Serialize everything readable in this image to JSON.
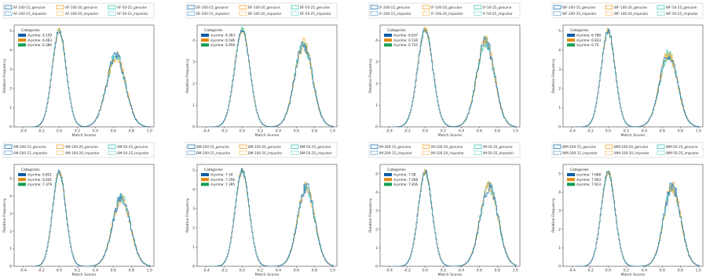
{
  "chart_data": [
    {
      "type": "histogram",
      "xlabel": "Match Scores",
      "ylabel": "Relative Frequency",
      "xlim": [
        -0.5,
        1.05
      ],
      "ylim": [
        0,
        5.3
      ],
      "xticks": [
        -0.4,
        -0.2,
        0.0,
        0.2,
        0.4,
        0.6,
        0.8,
        1.0
      ],
      "yticks": [
        0,
        1,
        2,
        3,
        4,
        5
      ],
      "legend_top": [
        "AF-200-15_genuine",
        "AF-100-20_genuine",
        "AF-50-25_genuine",
        "AF-200-15_impostor",
        "AF-100-20_impostor",
        "AF-50-25_impostor"
      ],
      "categories_title": "Categories",
      "categories": [
        "d-prime: 6.159",
        "d-prime: 6.463",
        "d-prime: 6.386"
      ],
      "impostor": {
        "mean": 0.0,
        "sd": 0.078,
        "peak": 5.0
      },
      "genuine": {
        "mean": 0.63,
        "sd": 0.105,
        "peak": 3.7
      }
    },
    {
      "type": "histogram",
      "xlabel": "Match Scores",
      "ylabel": "Relative Frequency",
      "xlim": [
        -0.5,
        1.05
      ],
      "ylim": [
        0,
        4.7
      ],
      "xticks": [
        -0.4,
        -0.2,
        0.0,
        0.2,
        0.4,
        0.6,
        0.8,
        1.0
      ],
      "yticks": [
        0,
        1,
        2,
        3,
        4
      ],
      "legend_top": [
        "BF-200-15_genuine",
        "BF-100-20_genuine",
        "BF-50-25_genuine",
        "BF-200-15_impostor",
        "BF-100-20_impostor",
        "BF-50-25_impostor"
      ],
      "categories_title": "Categories",
      "categories": [
        "d-prime: 6.363",
        "d-prime: 6.546",
        "d-prime: 6.959"
      ],
      "impostor": {
        "mean": 0.0,
        "sd": 0.085,
        "peak": 4.5
      },
      "genuine": {
        "mean": 0.68,
        "sd": 0.1,
        "peak": 3.8
      }
    },
    {
      "type": "histogram",
      "xlabel": "Match Scores",
      "ylabel": "Relative Frequency",
      "xlim": [
        -0.5,
        1.05
      ],
      "ylim": [
        0,
        4.7
      ],
      "xticks": [
        -0.4,
        -0.2,
        0.0,
        0.2,
        0.4,
        0.6,
        0.8,
        1.0
      ],
      "yticks": [
        0,
        1,
        2,
        3,
        4
      ],
      "legend_top": [
        "IF-200-15_genuine",
        "IF-100-20_genuine",
        "IF-50-25_genuine",
        "IF-200-15_impostor",
        "IF-100-20_impostor",
        "IF-50-25_impostor"
      ],
      "categories_title": "Categories",
      "categories": [
        "d-prime: 6.637",
        "d-prime: 6.516",
        "d-prime: 6.725"
      ],
      "impostor": {
        "mean": 0.0,
        "sd": 0.085,
        "peak": 4.5
      },
      "genuine": {
        "mean": 0.67,
        "sd": 0.1,
        "peak": 3.9
      }
    },
    {
      "type": "histogram",
      "xlabel": "Match Scores",
      "ylabel": "Relative Frequency",
      "xlim": [
        -0.5,
        1.05
      ],
      "ylim": [
        0,
        5.3
      ],
      "xticks": [
        -0.4,
        -0.2,
        0.0,
        0.2,
        0.4,
        0.6,
        0.8,
        1.0
      ],
      "yticks": [
        0,
        1,
        2,
        3,
        4,
        5
      ],
      "legend_top": [
        "WF-200-15_genuine",
        "WF-100-20_genuine",
        "WF-50-25_genuine",
        "WF-200-15_impostor",
        "WF-100-20_impostor",
        "WF-50-25_impostor"
      ],
      "categories_title": "Categories",
      "categories": [
        "d-prime: 6.788",
        "d-prime: 6.823",
        "d-prime: 6.75"
      ],
      "impostor": {
        "mean": 0.0,
        "sd": 0.078,
        "peak": 5.0
      },
      "genuine": {
        "mean": 0.67,
        "sd": 0.1,
        "peak": 3.8
      }
    },
    {
      "type": "histogram",
      "xlabel": "Match Scores",
      "ylabel": "Relative Frequency",
      "xlim": [
        -0.5,
        1.05
      ],
      "ylim": [
        0,
        5.8
      ],
      "xticks": [
        -0.4,
        -0.2,
        0.0,
        0.2,
        0.4,
        0.6,
        0.8,
        1.0
      ],
      "yticks": [
        0,
        1,
        2,
        3,
        4,
        5
      ],
      "legend_top": [
        "AM-200-15_genuine",
        "AM-100-20_genuine",
        "AM-50-25_genuine",
        "AM-200-15_impostor",
        "AM-100-20_impostor",
        "AM-50-25_impostor"
      ],
      "categories_title": "Categories",
      "categories": [
        "d-prime: 6.821",
        "d-prime: 6.641",
        "d-prime: 7.379"
      ],
      "impostor": {
        "mean": 0.0,
        "sd": 0.073,
        "peak": 5.4
      },
      "genuine": {
        "mean": 0.69,
        "sd": 0.1,
        "peak": 3.9
      }
    },
    {
      "type": "histogram",
      "xlabel": "Match Scores",
      "ylabel": "Relative Frequency",
      "xlim": [
        -0.5,
        1.05
      ],
      "ylim": [
        0,
        5.3
      ],
      "xticks": [
        -0.4,
        -0.2,
        0.0,
        0.2,
        0.4,
        0.6,
        0.8,
        1.0
      ],
      "yticks": [
        0,
        1,
        2,
        3,
        4,
        5
      ],
      "legend_top": [
        "BM-200-15_genuine",
        "BM-100-20_genuine",
        "BM-50-25_genuine",
        "BM-200-15_impostor",
        "BM-100-20_impostor",
        "BM-50-25_impostor"
      ],
      "categories_title": "Categories",
      "categories": [
        "d-prime: 7.34",
        "d-prime: 7.356",
        "d-prime: 7.395"
      ],
      "impostor": {
        "mean": 0.0,
        "sd": 0.078,
        "peak": 5.0
      },
      "genuine": {
        "mean": 0.71,
        "sd": 0.095,
        "peak": 4.1
      }
    },
    {
      "type": "histogram",
      "xlabel": "Match Scores",
      "ylabel": "Relative Frequency",
      "xlim": [
        -0.5,
        1.05
      ],
      "ylim": [
        0,
        5.5
      ],
      "xticks": [
        -0.4,
        -0.2,
        0.0,
        0.2,
        0.4,
        0.6,
        0.8,
        1.0
      ],
      "yticks": [
        0,
        1,
        2,
        3,
        4,
        5
      ],
      "legend_top": [
        "IM-200-15_genuine",
        "IM-100-20_genuine",
        "IM-50-25_genuine",
        "IM-200-15_impostor",
        "IM-100-20_impostor",
        "IM-50-25_impostor"
      ],
      "categories_title": "Categories",
      "categories": [
        "d-prime: 7.58",
        "d-prime: 7.468",
        "d-prime: 7.816"
      ],
      "impostor": {
        "mean": 0.0,
        "sd": 0.077,
        "peak": 5.1
      },
      "genuine": {
        "mean": 0.71,
        "sd": 0.1,
        "peak": 4.3
      }
    },
    {
      "type": "histogram",
      "xlabel": "Match Scores",
      "ylabel": "Relative Frequency",
      "xlim": [
        -0.5,
        1.05
      ],
      "ylim": [
        0,
        5.5
      ],
      "xticks": [
        -0.4,
        -0.2,
        0.0,
        0.2,
        0.4,
        0.6,
        0.8,
        1.0
      ],
      "yticks": [
        0,
        1,
        2,
        3,
        4,
        5
      ],
      "legend_top": [
        "WM-200-15_genuine",
        "WM-100-20_genuine",
        "WM-50-25_genuine",
        "WM-200-15_impostor",
        "WM-100-20_impostor",
        "WM-50-25_impostor"
      ],
      "categories_title": "Categories",
      "categories": [
        "d-prime: 7.668",
        "d-prime: 7.963",
        "d-prime: 7.913"
      ],
      "impostor": {
        "mean": 0.0,
        "sd": 0.077,
        "peak": 5.1
      },
      "genuine": {
        "mean": 0.71,
        "sd": 0.095,
        "peak": 4.3
      }
    }
  ],
  "colors": {
    "series_a": "#1f77b4",
    "series_b": "#f0a830",
    "series_c": "#2ca02c",
    "teal": "#3ec9b8",
    "swatch_a": "#0b5ea8",
    "swatch_b": "#e08a10",
    "swatch_c": "#159e52"
  }
}
